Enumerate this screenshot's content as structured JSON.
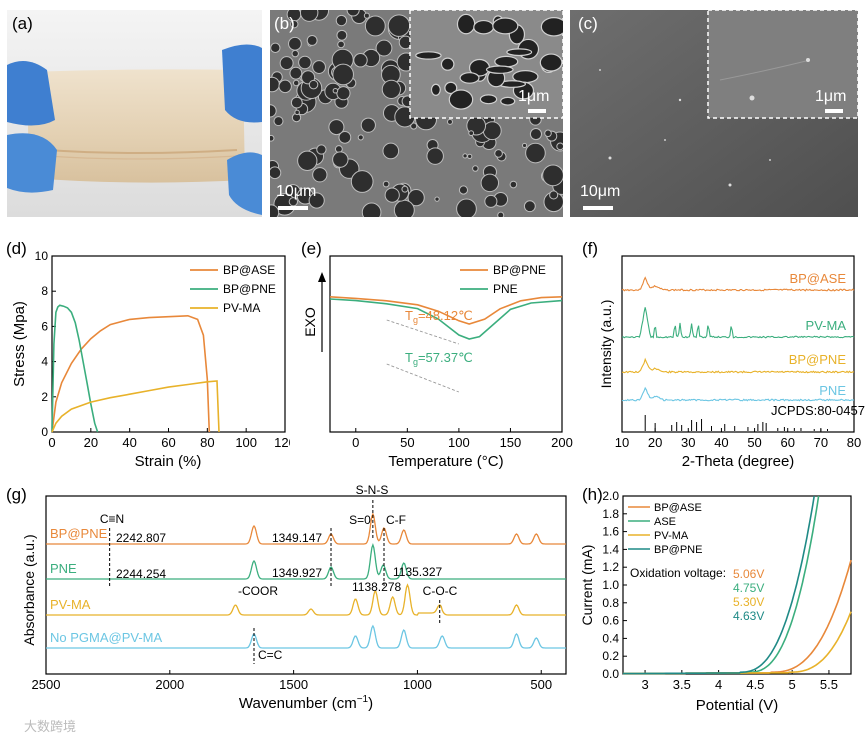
{
  "colors": {
    "orange": "#E8883A",
    "green": "#3BAE7E",
    "yellow": "#E8B22A",
    "teal": "#1F8A86",
    "blue": "#6CC6E3",
    "glove": "#4A8BD6",
    "film": "#E6D5BD",
    "sem1": "#6a6a6a",
    "sem2": "#5a5a5a"
  },
  "panels": {
    "a": {
      "label": "(a)"
    },
    "b": {
      "label": "(b)",
      "scale": "10μm",
      "inset_scale": "1μm"
    },
    "c": {
      "label": "(c)",
      "scale": "10μm",
      "inset_scale": "1μm"
    }
  },
  "chart_data": [
    {
      "panel": "(d)",
      "type": "line",
      "xlabel": "Strain (%)",
      "ylabel": "Stress (Mpa)",
      "xlim": [
        0,
        120
      ],
      "ylim": [
        0,
        10
      ],
      "xticks": [
        0,
        20,
        40,
        60,
        80,
        100,
        120
      ],
      "yticks": [
        0,
        2,
        4,
        6,
        8,
        10
      ],
      "legend_position": "top-right",
      "series": [
        {
          "name": "BP@ASE",
          "color": "orange",
          "x": [
            0,
            2,
            5,
            10,
            15,
            20,
            25,
            30,
            40,
            50,
            60,
            70,
            75,
            78,
            80,
            81
          ],
          "y": [
            0,
            1.7,
            2.8,
            3.9,
            4.7,
            5.3,
            5.75,
            6.1,
            6.4,
            6.5,
            6.55,
            6.6,
            6.4,
            5.5,
            3,
            0
          ]
        },
        {
          "name": "BP@PNE",
          "color": "green",
          "x": [
            0,
            1,
            2,
            3,
            4,
            6,
            8,
            10,
            12,
            14,
            16,
            18,
            20,
            22,
            23.5
          ],
          "y": [
            0,
            5,
            6.8,
            7.1,
            7.2,
            7.15,
            7.05,
            6.8,
            6.2,
            5.2,
            4,
            2.8,
            1.6,
            0.5,
            0
          ]
        },
        {
          "name": "PV-MA",
          "color": "yellow",
          "x": [
            0,
            2,
            5,
            10,
            20,
            30,
            40,
            50,
            60,
            70,
            80,
            85,
            86
          ],
          "y": [
            0,
            0.5,
            0.9,
            1.3,
            1.7,
            1.95,
            2.15,
            2.35,
            2.55,
            2.7,
            2.85,
            2.9,
            0
          ]
        }
      ]
    },
    {
      "panel": "(e)",
      "type": "line",
      "xlabel": "Temperature (°C)",
      "ylabel": "EXO",
      "xlim": [
        -25,
        200
      ],
      "xticks": [
        0,
        50,
        100,
        150,
        200
      ],
      "legend_position": "top-right",
      "annotations": [
        "T",
        "g",
        "=48.12℃",
        "T",
        "g",
        "=57.37℃"
      ],
      "series": [
        {
          "name": "BP@PNE",
          "color": "orange",
          "x": [
            -25,
            0,
            30,
            60,
            80,
            100,
            110,
            125,
            140,
            160,
            180,
            200
          ],
          "y": [
            1.0,
            0.98,
            0.95,
            0.9,
            0.82,
            0.7,
            0.66,
            0.72,
            0.85,
            0.95,
            0.99,
            1.0
          ]
        },
        {
          "name": "PNE",
          "color": "green",
          "x": [
            -25,
            0,
            30,
            60,
            80,
            100,
            110,
            120,
            135,
            150,
            170,
            200
          ],
          "y": [
            0.0,
            -0.02,
            -0.06,
            -0.12,
            -0.25,
            -0.45,
            -0.5,
            -0.47,
            -0.3,
            -0.13,
            -0.05,
            -0.02
          ]
        }
      ]
    },
    {
      "panel": "(f)",
      "type": "line",
      "xlabel": "2-Theta (degree)",
      "ylabel": "Intensity (a.u.)",
      "xlim": [
        10,
        80
      ],
      "xticks": [
        10,
        20,
        30,
        40,
        50,
        60,
        70,
        80
      ],
      "series": [
        {
          "name": "BP@ASE",
          "color": "orange"
        },
        {
          "name": "PV-MA",
          "color": "green"
        },
        {
          "name": "BP@PNE",
          "color": "yellow"
        },
        {
          "name": "PNE",
          "color": "blue"
        }
      ],
      "reference": {
        "label": "JCPDS:80-0457",
        "x": [
          17,
          20,
          25,
          26.5,
          28,
          31,
          32.5,
          34,
          37,
          41,
          44,
          48,
          51,
          52.5,
          53.5,
          57,
          59,
          62,
          64,
          68,
          70,
          72
        ]
      }
    },
    {
      "panel": "(g)",
      "type": "line",
      "xlabel": "Wavenumber (cm",
      "xlabel_sup": "−1",
      "xlabel_end": ")",
      "ylabel": "Absorbance (a.u.)",
      "xlim": [
        2500,
        400
      ],
      "xticks": [
        2500,
        2000,
        1500,
        1000,
        500
      ],
      "series": [
        {
          "name": "BP@PNE",
          "color": "orange"
        },
        {
          "name": "PNE",
          "color": "green"
        },
        {
          "name": "PV-MA",
          "color": "yellow"
        },
        {
          "name": "No PGMA@PV-MA",
          "color": "blue"
        }
      ],
      "annotations": {
        "cn": "C≡N",
        "v1": "2242.807",
        "v2": "2244.254",
        "so": "S=0",
        "sns": "S-N-S",
        "cf": "C-F",
        "v3": "1349.147",
        "v4": "1349.927",
        "v5": "1135.327",
        "v6": "1138.278",
        "coor": "-COOR",
        "coc": "C-O-C",
        "cc": "C=C"
      }
    },
    {
      "panel": "(h)",
      "type": "line",
      "xlabel": "Potential (V)",
      "ylabel": "Current (mA)",
      "xlim": [
        2.7,
        5.8
      ],
      "ylim": [
        0,
        2.0
      ],
      "xticks": [
        3.0,
        3.5,
        4.0,
        4.5,
        5.0,
        5.5
      ],
      "yticks": [
        0.0,
        0.2,
        0.4,
        0.6,
        0.8,
        1.0,
        1.2,
        1.4,
        1.6,
        1.8,
        2.0
      ],
      "legend_position": "top-left",
      "oxidation_label": "Oxidation voltage:",
      "series": [
        {
          "name": "BP@ASE",
          "color": "orange",
          "onset": "5.06V",
          "onset_v": 5.06,
          "end_v": 5.8,
          "end_i": 1.28
        },
        {
          "name": "ASE",
          "color": "green",
          "onset": "4.75V",
          "onset_v": 4.75,
          "end_v": 5.36,
          "end_i": 2.0
        },
        {
          "name": "PV-MA",
          "color": "yellow",
          "onset": "5.30V",
          "onset_v": 5.3,
          "end_v": 5.8,
          "end_i": 0.7
        },
        {
          "name": "BP@PNE",
          "color": "teal",
          "onset": "4.63V",
          "onset_v": 4.63,
          "end_v": 5.3,
          "end_i": 2.0
        }
      ]
    }
  ],
  "watermark": "大数跨境"
}
